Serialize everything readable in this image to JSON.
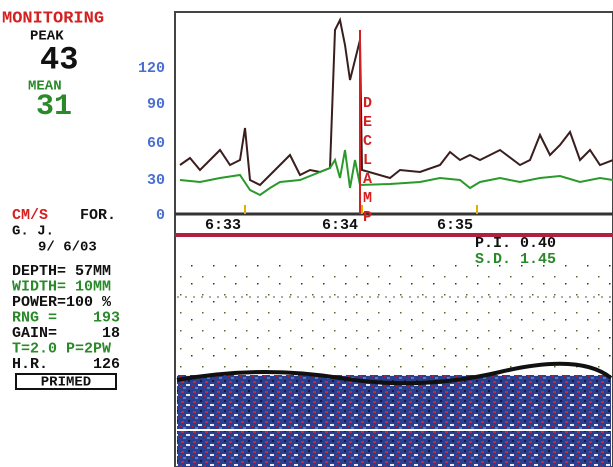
{
  "header": {
    "title": "MONITORING",
    "peak_label": "PEAK",
    "peak_value": "43",
    "mean_label": "MEAN",
    "mean_value": "31"
  },
  "axis": {
    "ticks": [
      "120",
      "90",
      "60",
      "30",
      "0"
    ],
    "unit": "CM/S",
    "direction": "FOR."
  },
  "event": "DECLAMP",
  "patient": {
    "initials": "G. J.",
    "date": "9/ 6/03"
  },
  "times": [
    "6:33",
    "6:34",
    "6:35"
  ],
  "indices": {
    "pi": "P.I. 0.40",
    "sd": "S.D. 1.45"
  },
  "settings": [
    "DEPTH= 57MM",
    "WIDTH= 10MM",
    "POWER=100 %",
    "RNG =    193",
    "GAIN=     18",
    "T=2.0 P=2PW",
    "H.R.     126"
  ],
  "status": "PRIMED"
}
